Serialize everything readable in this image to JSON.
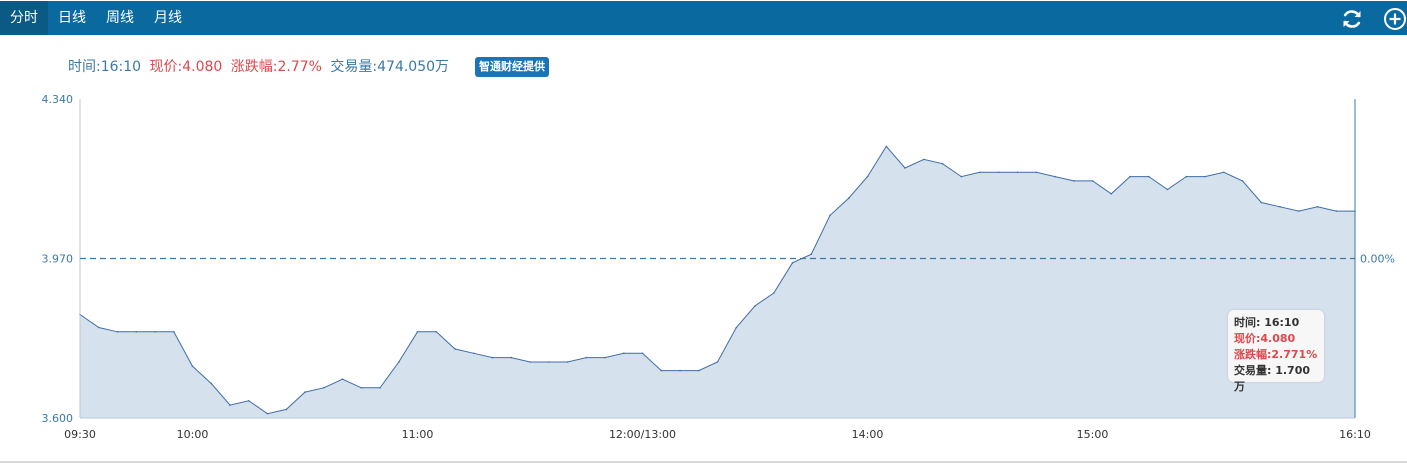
{
  "tabs": [
    {
      "label": "分时"
    },
    {
      "label": "日线"
    },
    {
      "label": "周线"
    },
    {
      "label": "月线"
    }
  ],
  "info": {
    "time": "时间:16:10",
    "price": "现价:4.080",
    "change": "涨跌幅:2.77%",
    "volume": "交易量:474.050万",
    "provider": "智通财经提供"
  },
  "tooltip": {
    "time": "时间: 16:10",
    "price": "现价:4.080",
    "change": "涨跌幅:2.771%",
    "volume": "交易量: 1.700万"
  },
  "icons": {
    "refresh": "refresh-icon",
    "add": "add-circle-icon"
  },
  "colors": {
    "header": "#0a6aa0",
    "line": "#3f6ea8",
    "fill": "#d6e1ee",
    "up": "#e0474c",
    "axis": "#3a79a6"
  },
  "chart_data": {
    "type": "area",
    "title": "",
    "ylim": [
      3.6,
      4.34
    ],
    "y_ticks": [
      "4.340",
      "3.970",
      "3.600"
    ],
    "reference_price": 3.97,
    "reference_label": "0.00%",
    "x_ticks": [
      "09:30",
      "10:00",
      "11:00",
      "12:00/13:00",
      "14:00",
      "15:00",
      "16:10"
    ],
    "series": [
      {
        "x": [
          "09:30",
          "09:35",
          "09:40",
          "09:45",
          "09:50",
          "09:55",
          "10:00",
          "10:05",
          "10:10",
          "10:15",
          "10:20",
          "10:25",
          "10:30",
          "10:35",
          "10:40",
          "10:45",
          "10:50",
          "10:55",
          "11:00",
          "11:05",
          "11:10",
          "11:15",
          "11:20",
          "11:25",
          "11:30",
          "11:35",
          "11:40",
          "11:45",
          "11:50",
          "11:55",
          "12:00/13:00",
          "13:05",
          "13:10",
          "13:15",
          "13:20",
          "13:25",
          "13:30",
          "13:35",
          "13:40",
          "13:45",
          "13:50",
          "13:55",
          "14:00",
          "14:05",
          "14:10",
          "14:15",
          "14:20",
          "14:25",
          "14:30",
          "14:35",
          "14:40",
          "14:45",
          "14:50",
          "14:55",
          "15:00",
          "15:05",
          "15:10",
          "15:15",
          "15:20",
          "15:25",
          "15:30",
          "15:35",
          "15:40",
          "15:45",
          "15:50",
          "15:55",
          "16:00",
          "16:05",
          "16:10"
        ],
        "values": [
          3.84,
          3.81,
          3.8,
          3.8,
          3.8,
          3.8,
          3.72,
          3.68,
          3.63,
          3.64,
          3.61,
          3.62,
          3.66,
          3.67,
          3.69,
          3.67,
          3.67,
          3.73,
          3.8,
          3.8,
          3.76,
          3.75,
          3.74,
          3.74,
          3.73,
          3.73,
          3.73,
          3.74,
          3.74,
          3.75,
          3.75,
          3.71,
          3.71,
          3.71,
          3.73,
          3.81,
          3.86,
          3.89,
          3.96,
          3.98,
          4.07,
          4.11,
          4.16,
          4.23,
          4.18,
          4.2,
          4.19,
          4.16,
          4.17,
          4.17,
          4.17,
          4.17,
          4.16,
          4.15,
          4.15,
          4.12,
          4.16,
          4.16,
          4.13,
          4.16,
          4.16,
          4.17,
          4.15,
          4.1,
          4.09,
          4.08,
          4.09,
          4.08,
          4.08
        ]
      }
    ]
  }
}
